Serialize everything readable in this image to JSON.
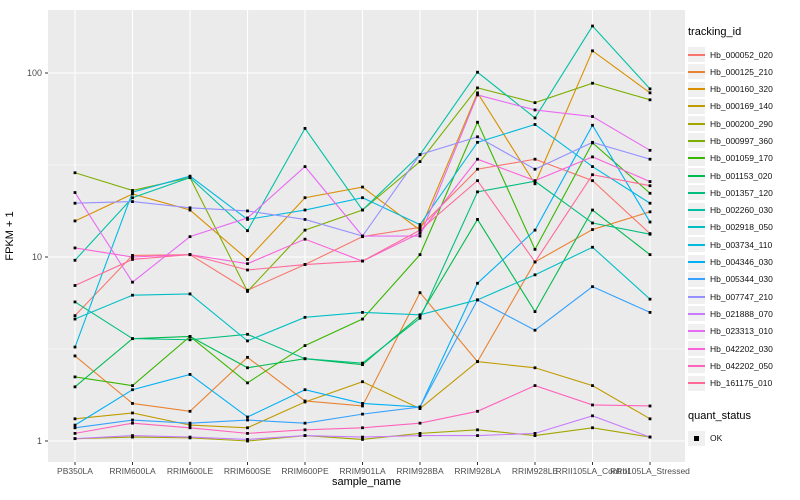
{
  "chart": {
    "xlabel": "sample_name",
    "ylabel": "FPKM + 1",
    "legend_title": "tracking_id",
    "legend2_title": "quant_status",
    "legend2_items": [
      "OK"
    ],
    "panel_bg": "#ebebeb",
    "grid_color": "#ffffff",
    "tick_label_color": "#4d4d4d",
    "point_color": "#000000"
  },
  "chart_data": {
    "type": "line",
    "title": "",
    "xlabel": "sample_name",
    "ylabel": "FPKM + 1",
    "yscale": "log10",
    "y_ticks": [
      1,
      10,
      100
    ],
    "ylim": [
      0.77,
      220
    ],
    "grid": true,
    "legend_position": "right",
    "point_shape": "square",
    "categories": [
      "PB350LA",
      "RRIM600LA",
      "RRIM600LE",
      "RRIM600SE",
      "RRIM600PE",
      "RRIM901LA",
      "RRIM928BA",
      "RRIM928LA",
      "RRIM928LE",
      "RRII105LA_Control",
      "RRII105LA_Stressed"
    ],
    "series": [
      {
        "name": "Hb_000052_020",
        "color": "#F8766D",
        "values": [
          4.8,
          10.2,
          10.3,
          6.6,
          9.1,
          12.9,
          14.5,
          30,
          34,
          26,
          13.4
        ]
      },
      {
        "name": "Hb_000125_210",
        "color": "#EA8331",
        "values": [
          2.9,
          1.6,
          1.45,
          2.85,
          1.65,
          1.55,
          6.4,
          2.7,
          9.4,
          14.1,
          17.6
        ]
      },
      {
        "name": "Hb_000160_320",
        "color": "#D89000",
        "values": [
          15.7,
          22,
          18,
          9.7,
          21,
          24,
          14,
          78,
          25,
          132,
          78
        ]
      },
      {
        "name": "Hb_000169_140",
        "color": "#C09B00",
        "values": [
          1.32,
          1.42,
          1.22,
          1.18,
          1.63,
          2.1,
          1.5,
          2.7,
          2.5,
          2.0,
          1.32
        ]
      },
      {
        "name": "Hb_000200_290",
        "color": "#A3A500",
        "values": [
          1.03,
          1.05,
          1.04,
          1.0,
          1.07,
          1.02,
          1.1,
          1.15,
          1.07,
          1.18,
          1.05
        ]
      },
      {
        "name": "Hb_000997_360",
        "color": "#7CAE00",
        "values": [
          28.7,
          23,
          27,
          6.5,
          14,
          18,
          33,
          83,
          69,
          88,
          71.5
        ]
      },
      {
        "name": "Hb_001059_170",
        "color": "#39B600",
        "values": [
          2.23,
          2.0,
          3.7,
          2.07,
          3.3,
          4.6,
          10.3,
          54,
          11,
          41.7,
          22.2
        ]
      },
      {
        "name": "Hb_001153_020",
        "color": "#00BB4E",
        "values": [
          1.97,
          3.6,
          3.7,
          2.5,
          2.8,
          2.6,
          4.8,
          16,
          5.05,
          18,
          10.3
        ]
      },
      {
        "name": "Hb_001357_120",
        "color": "#00BF7D",
        "values": [
          5.7,
          3.6,
          3.55,
          3.8,
          2.8,
          2.65,
          4.65,
          22.6,
          25.8,
          15.3,
          13.3
        ]
      },
      {
        "name": "Hb_002260_030",
        "color": "#00C1A3",
        "values": [
          9.6,
          21,
          27,
          13.9,
          50,
          18,
          36,
          101,
          57,
          180,
          82
        ]
      },
      {
        "name": "Hb_002918_050",
        "color": "#00BFC4",
        "values": [
          4.6,
          6.2,
          6.3,
          3.5,
          4.7,
          5.0,
          4.85,
          5.85,
          8.0,
          11.3,
          5.9
        ]
      },
      {
        "name": "Hb_003734_110",
        "color": "#00BAE0",
        "values": [
          3.24,
          22.5,
          27.5,
          16,
          18,
          21,
          15,
          42,
          52.5,
          31,
          19.6
        ]
      },
      {
        "name": "Hb_004346_030",
        "color": "#00B0F6",
        "values": [
          1.22,
          1.9,
          2.3,
          1.35,
          1.9,
          1.6,
          1.53,
          7.2,
          14,
          52,
          15.5
        ]
      },
      {
        "name": "Hb_005344_030",
        "color": "#35A2FF",
        "values": [
          1.18,
          1.3,
          1.25,
          1.3,
          1.25,
          1.4,
          1.53,
          5.85,
          4.0,
          6.9,
          5.0
        ]
      },
      {
        "name": "Hb_007747_210",
        "color": "#9590FF",
        "values": [
          19.6,
          20,
          18.5,
          17.8,
          16,
          13,
          36,
          45,
          30,
          42,
          34
        ]
      },
      {
        "name": "Hb_021888_070",
        "color": "#C77CFF",
        "values": [
          1.03,
          1.07,
          1.05,
          1.02,
          1.07,
          1.05,
          1.07,
          1.07,
          1.1,
          1.37,
          1.05
        ]
      },
      {
        "name": "Hb_023313_010",
        "color": "#E76BF3",
        "values": [
          22.4,
          7.3,
          12.9,
          16.3,
          31,
          13,
          13,
          76,
          63,
          58,
          38
        ]
      },
      {
        "name": "Hb_042202_030",
        "color": "#FA62DB",
        "values": [
          11.2,
          10.0,
          10.3,
          9.2,
          12.5,
          9.5,
          13.5,
          34,
          26,
          35,
          25.7
        ]
      },
      {
        "name": "Hb_042202_050",
        "color": "#FF62BC",
        "values": [
          1.1,
          1.25,
          1.18,
          1.1,
          1.15,
          1.18,
          1.25,
          1.45,
          2.0,
          1.57,
          1.55
        ]
      },
      {
        "name": "Hb_161175_010",
        "color": "#FF6A98",
        "values": [
          7.0,
          9.7,
          10.3,
          8.5,
          9.1,
          9.5,
          14,
          26,
          9.4,
          28,
          24.4
        ]
      }
    ]
  }
}
